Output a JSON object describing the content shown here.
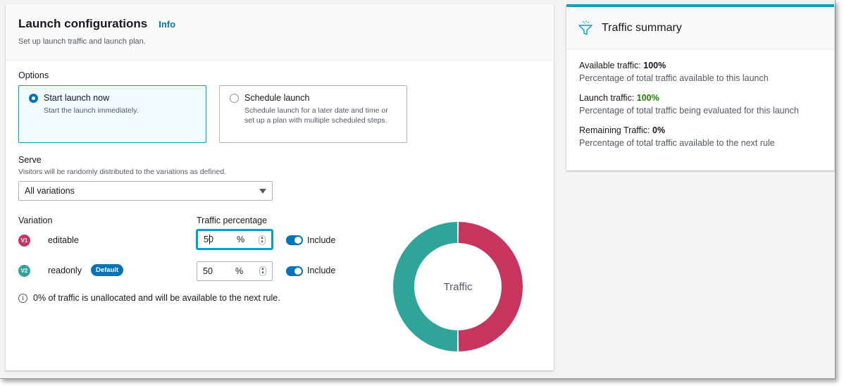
{
  "launch": {
    "title": "Launch configurations",
    "info_label": "Info",
    "description": "Set up launch traffic and launch plan."
  },
  "options": {
    "label": "Options",
    "start_now": {
      "title": "Start launch now",
      "description": "Start the launch immediately.",
      "selected": true
    },
    "schedule": {
      "title": "Schedule launch",
      "description": "Schedule launch for a later date and time or set up a plan with multiple scheduled steps.",
      "selected": false
    }
  },
  "serve": {
    "label": "Serve",
    "description": "Visitors will be randomly distributed to the variations as defined.",
    "selected": "All variations"
  },
  "variations": {
    "col_variation": "Variation",
    "col_traffic": "Traffic percentage",
    "items": [
      {
        "badge": "V1",
        "name": "editable",
        "value": "50",
        "unit": "%",
        "include_label": "Include",
        "included": true,
        "color": "#c7355e"
      },
      {
        "badge": "V2",
        "name": "readonly",
        "default_label": "Default",
        "value": "50",
        "unit": "%",
        "include_label": "Include",
        "included": true,
        "color": "#2fa59a"
      }
    ],
    "note": "0% of traffic is unallocated and will be available to the next rule."
  },
  "donut": {
    "label": "Traffic",
    "segments": [
      {
        "name": "editable",
        "value": 50,
        "color": "#c7355e"
      },
      {
        "name": "readonly",
        "value": 50,
        "color": "#2fa59a"
      }
    ]
  },
  "summary": {
    "title": "Traffic summary",
    "available": {
      "label": "Available traffic:",
      "value": "100%",
      "description": "Percentage of total traffic available to this launch"
    },
    "launch": {
      "label": "Launch traffic:",
      "value": "100%",
      "description": "Percentage of total traffic being evaluated for this launch"
    },
    "remaining": {
      "label": "Remaining Traffic:",
      "value": "0%",
      "description": "Percentage of total traffic available to the next rule"
    }
  },
  "colors": {
    "accent": "#0073bb",
    "selected_border": "#00a1c9",
    "green": "#1d8102"
  }
}
